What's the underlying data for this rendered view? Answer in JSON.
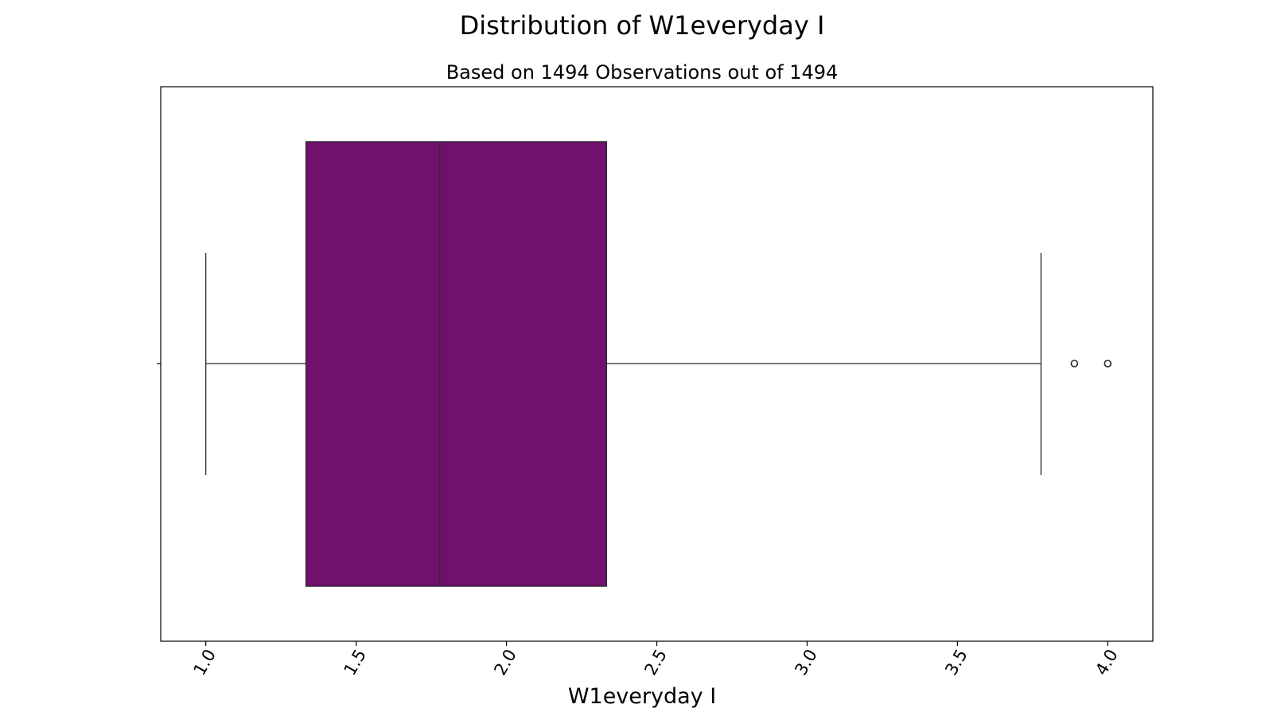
{
  "chart_data": {
    "type": "box",
    "title": "Distribution of W1everyday I",
    "subtitle": "Based on 1494 Observations out of 1494",
    "xlabel": "W1everyday I",
    "ylabel": "",
    "orientation": "horizontal",
    "xlim": [
      0.85,
      4.15
    ],
    "xticks": [
      1.0,
      1.5,
      2.0,
      2.5,
      3.0,
      3.5,
      4.0
    ],
    "xtick_labels": [
      "1.0",
      "1.5",
      "2.0",
      "2.5",
      "3.0",
      "3.5",
      "4.0"
    ],
    "xtick_rotation": 60,
    "grid": false,
    "box": {
      "whisker_low": 1.0,
      "q1": 1.333,
      "median": 1.778,
      "q3": 2.333,
      "whisker_high": 3.778,
      "outliers": [
        3.889,
        4.0
      ]
    },
    "colors": {
      "box_fill": "#6f116d",
      "lines": "#2b2b2b",
      "frame": "#000000"
    }
  }
}
